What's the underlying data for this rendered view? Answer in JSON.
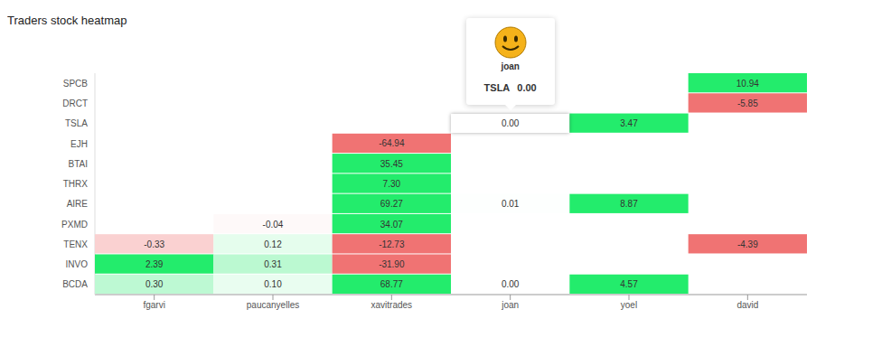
{
  "chart_data": {
    "type": "heatmap",
    "title": "Traders stock heatmap",
    "x_categories": [
      "fgarvi",
      "paucanyelles",
      "xavitrades",
      "joan",
      "yoel",
      "david"
    ],
    "y_categories": [
      "SPCB",
      "DRCT",
      "TSLA",
      "EJH",
      "BTAI",
      "THRX",
      "AIRE",
      "PXMD",
      "TENX",
      "INVO",
      "BCDA"
    ],
    "color_range": [
      -1,
      1
    ],
    "data_labels": true,
    "cells": [
      {
        "x": "fgarvi",
        "y": "TENX",
        "value": -0.33,
        "label": "-0.33"
      },
      {
        "x": "fgarvi",
        "y": "INVO",
        "value": 2.39,
        "label": "2.39"
      },
      {
        "x": "fgarvi",
        "y": "BCDA",
        "value": 0.3,
        "label": "0.30"
      },
      {
        "x": "paucanyelles",
        "y": "PXMD",
        "value": -0.04,
        "label": "-0.04"
      },
      {
        "x": "paucanyelles",
        "y": "TENX",
        "value": 0.12,
        "label": "0.12"
      },
      {
        "x": "paucanyelles",
        "y": "INVO",
        "value": 0.31,
        "label": "0.31"
      },
      {
        "x": "paucanyelles",
        "y": "BCDA",
        "value": 0.1,
        "label": "0.10"
      },
      {
        "x": "xavitrades",
        "y": "EJH",
        "value": -64.94,
        "label": "-64.94"
      },
      {
        "x": "xavitrades",
        "y": "BTAI",
        "value": 35.45,
        "label": "35.45"
      },
      {
        "x": "xavitrades",
        "y": "THRX",
        "value": 7.3,
        "label": "7.30"
      },
      {
        "x": "xavitrades",
        "y": "AIRE",
        "value": 69.27,
        "label": "69.27"
      },
      {
        "x": "xavitrades",
        "y": "PXMD",
        "value": 34.07,
        "label": "34.07"
      },
      {
        "x": "xavitrades",
        "y": "TENX",
        "value": -12.73,
        "label": "-12.73"
      },
      {
        "x": "xavitrades",
        "y": "INVO",
        "value": -31.9,
        "label": "-31.90"
      },
      {
        "x": "xavitrades",
        "y": "BCDA",
        "value": 68.77,
        "label": "68.77"
      },
      {
        "x": "joan",
        "y": "TSLA",
        "value": 0,
        "label": "0.00"
      },
      {
        "x": "joan",
        "y": "AIRE",
        "value": 0.01,
        "label": "0.01"
      },
      {
        "x": "joan",
        "y": "BCDA",
        "value": 0,
        "label": "0.00"
      },
      {
        "x": "yoel",
        "y": "TSLA",
        "value": 3.47,
        "label": "3.47"
      },
      {
        "x": "yoel",
        "y": "AIRE",
        "value": 8.87,
        "label": "8.87"
      },
      {
        "x": "yoel",
        "y": "BCDA",
        "value": 4.57,
        "label": "4.57"
      },
      {
        "x": "david",
        "y": "SPCB",
        "value": 10.94,
        "label": "10.94"
      },
      {
        "x": "david",
        "y": "DRCT",
        "value": -5.85,
        "label": "-5.85"
      },
      {
        "x": "david",
        "y": "TENX",
        "value": -4.39,
        "label": "-4.39"
      }
    ],
    "tooltip": {
      "trader": "joan",
      "stock": "TSLA",
      "value": 0,
      "label": "0.00"
    }
  }
}
